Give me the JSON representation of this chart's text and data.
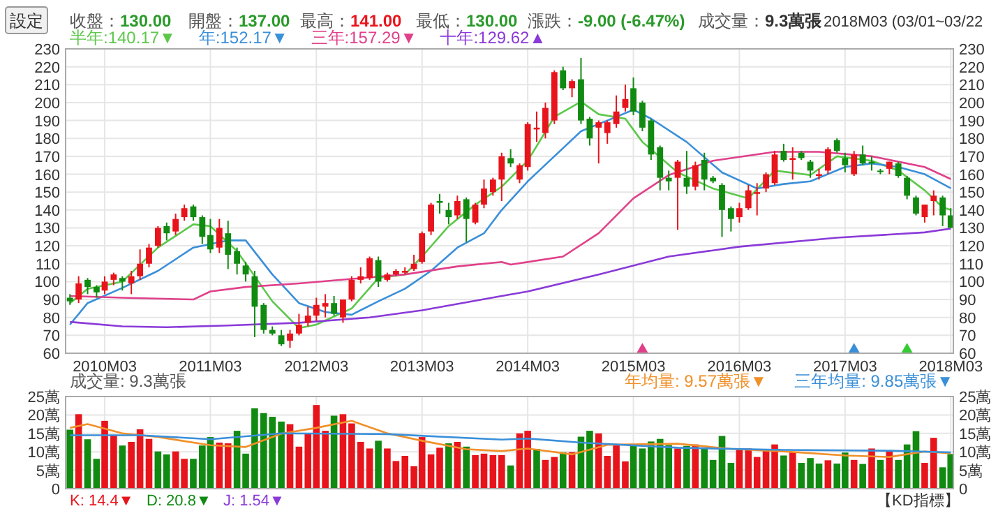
{
  "chart_data": [
    {
      "type": "candlestick",
      "annotations": [
        "設定",
        "收盤：130.00",
        "開盤：137.00",
        "最高：141.00",
        "最低：130.00",
        "漲跌：-9.00 (-6.47%)",
        "成交量：9.3萬張",
        "2018M03 (03/01~03/22"
      ],
      "xlim": [
        "2009-10-17",
        "2018-03-10"
      ],
      "xticks": [
        {
          "value": "2010-03",
          "label": "2010M03"
        },
        {
          "value": "2011-03",
          "label": "2011M03"
        },
        {
          "value": "2012-03",
          "label": "2012M03"
        },
        {
          "value": "2013-03",
          "label": "2013M03"
        },
        {
          "value": "2014-03",
          "label": "2014M03"
        },
        {
          "value": "2015-03",
          "label": "2015M03"
        },
        {
          "value": "2016-03",
          "label": "2016M03"
        },
        {
          "value": "2017-03",
          "label": "2017M03"
        },
        {
          "value": "2018-03",
          "label": "2018M03"
        }
      ],
      "ylim": [
        60,
        230
      ],
      "yticks": [
        60,
        70,
        80,
        90,
        100,
        110,
        120,
        130,
        140,
        150,
        160,
        170,
        180,
        190,
        200,
        210,
        220,
        230
      ],
      "y2lim": [
        60,
        230
      ],
      "y2ticks": [
        60,
        70,
        80,
        90,
        100,
        110,
        120,
        130,
        140,
        150,
        160,
        170,
        180,
        190,
        200,
        210,
        220,
        230
      ],
      "grid": true,
      "legend": "top left",
      "series": [
        {
          "x": [
            "2009-11",
            "2009-12",
            "2010-01",
            "2010-02",
            "2010-03",
            "2010-04",
            "2010-05",
            "2010-06",
            "2010-07",
            "2010-08",
            "2010-09",
            "2010-10",
            "2010-11",
            "2010-12",
            "2011-01",
            "2011-02",
            "2011-03",
            "2011-04",
            "2011-05",
            "2011-06",
            "2011-07",
            "2011-08",
            "2011-09",
            "2011-10",
            "2011-11",
            "2011-12",
            "2012-01",
            "2012-02",
            "2012-03",
            "2012-04",
            "2012-05",
            "2012-06",
            "2012-07",
            "2012-08",
            "2012-09",
            "2012-10",
            "2012-11",
            "2012-12",
            "2013-01",
            "2013-02",
            "2013-03",
            "2013-04",
            "2013-05",
            "2013-06",
            "2013-07",
            "2013-08",
            "2013-09",
            "2013-10",
            "2013-11",
            "2013-12",
            "2014-01",
            "2014-02",
            "2014-03",
            "2014-04",
            "2014-05",
            "2014-06",
            "2014-07",
            "2014-08",
            "2014-09",
            "2014-10",
            "2014-11",
            "2014-12",
            "2015-01",
            "2015-02",
            "2015-03",
            "2015-04",
            "2015-05",
            "2015-06",
            "2015-07",
            "2015-08",
            "2015-09",
            "2015-10",
            "2015-11",
            "2015-12",
            "2016-01",
            "2016-02",
            "2016-03",
            "2016-04",
            "2016-05",
            "2016-06",
            "2016-07",
            "2016-08",
            "2016-09",
            "2016-10",
            "2016-11",
            "2016-12",
            "2017-01",
            "2017-02",
            "2017-03",
            "2017-04",
            "2017-05",
            "2017-06",
            "2017-07",
            "2017-08",
            "2017-09",
            "2017-10",
            "2017-11",
            "2017-12",
            "2018-01",
            "2018-02",
            "2018-03"
          ],
          "ohlc": [
            [
              91,
              93,
              87,
              89
            ],
            [
              90,
              103,
              88,
              99
            ],
            [
              101,
              102,
              93,
              97
            ],
            [
              97,
              98,
              91,
              94
            ],
            [
              95,
              103,
              93,
              100
            ],
            [
              101,
              105,
              98,
              104
            ],
            [
              102,
              103,
              95,
              100
            ],
            [
              99,
              106,
              93,
              103
            ],
            [
              103,
              118,
              101,
              110
            ],
            [
              110,
              121,
              108,
              119
            ],
            [
              120,
              131,
              119,
              130
            ],
            [
              131,
              133,
              123,
              127
            ],
            [
              128,
              138,
              126,
              135
            ],
            [
              136,
              143,
              134,
              141
            ],
            [
              142,
              143,
              134,
              136
            ],
            [
              136,
              137,
              121,
              125
            ],
            [
              126,
              135,
              116,
              118
            ],
            [
              119,
              135,
              116,
              130
            ],
            [
              127,
              134,
              107,
              115
            ],
            [
              117,
              119,
              104,
              110
            ],
            [
              109,
              111,
              100,
              104
            ],
            [
              103,
              106,
              69,
              86
            ],
            [
              87,
              88,
              71,
              73
            ],
            [
              73,
              75,
              70,
              71
            ],
            [
              70,
              73,
              64,
              65
            ],
            [
              67,
              73,
              63,
              71
            ],
            [
              71,
              82,
              70,
              76
            ],
            [
              77,
              86,
              75,
              81
            ],
            [
              81,
              91,
              78,
              87
            ],
            [
              86,
              93,
              80,
              88
            ],
            [
              88,
              92,
              81,
              82
            ],
            [
              80,
              90,
              77,
              90
            ],
            [
              90,
              103,
              89,
              101
            ],
            [
              101,
              108,
              99,
              103
            ],
            [
              102,
              114,
              101,
              113
            ],
            [
              112,
              114,
              97,
              100
            ],
            [
              101,
              105,
              100,
              104
            ],
            [
              104,
              107,
              103,
              106
            ],
            [
              105,
              108,
              104,
              106
            ],
            [
              107,
              115,
              106,
              110
            ],
            [
              111,
              128,
              110,
              127
            ],
            [
              128,
              144,
              126,
              143
            ],
            [
              145,
              149,
              138,
              144
            ],
            [
              140,
              144,
              132,
              136
            ],
            [
              137,
              148,
              135,
              145
            ],
            [
              146,
              147,
              122,
              135
            ],
            [
              133,
              144,
              132,
              143
            ],
            [
              143,
              157,
              141,
              152
            ],
            [
              150,
              158,
              148,
              157
            ],
            [
              157,
              172,
              145,
              170
            ],
            [
              169,
              174,
              164,
              166
            ],
            [
              157,
              166,
              155,
              165
            ],
            [
              164,
              189,
              162,
              188
            ],
            [
              185,
              195,
              178,
              186
            ],
            [
              183,
              200,
              180,
              197
            ],
            [
              190,
              218,
              188,
              217
            ],
            [
              218,
              220,
              207,
              208
            ],
            [
              208,
              213,
              203,
              212
            ],
            [
              213,
              225,
              188,
              190
            ],
            [
              191,
              192,
              176,
              180
            ],
            [
              186,
              190,
              166,
              189
            ],
            [
              183,
              190,
              177,
              189
            ],
            [
              188,
              204,
              186,
              195
            ],
            [
              197,
              210,
              195,
              202
            ],
            [
              208,
              214,
              193,
              195
            ],
            [
              200,
              201,
              184,
              186
            ],
            [
              190,
              191,
              168,
              171
            ],
            [
              175,
              176,
              151,
              158
            ],
            [
              158,
              162,
              151,
              156
            ],
            [
              158,
              168,
              129,
              167
            ],
            [
              158,
              173,
              149,
              153
            ],
            [
              153,
              167,
              151,
              165
            ],
            [
              168,
              172,
              151,
              157
            ],
            [
              158,
              159,
              155,
              156
            ],
            [
              154,
              155,
              125,
              140
            ],
            [
              141,
              142,
              128,
              135
            ],
            [
              136,
              144,
              133,
              141
            ],
            [
              141,
              154,
              140,
              151
            ],
            [
              149,
              155,
              137,
              150
            ],
            [
              152,
              161,
              150,
              160
            ],
            [
              155,
              173,
              154,
              171
            ],
            [
              173,
              177,
              167,
              168
            ],
            [
              168,
              175,
              157,
              169
            ],
            [
              172,
              173,
              168,
              169
            ],
            [
              167,
              168,
              158,
              162
            ],
            [
              159,
              163,
              157,
              160
            ],
            [
              162,
              175,
              160,
              174
            ],
            [
              179,
              180,
              172,
              173
            ],
            [
              169,
              172,
              161,
              165
            ],
            [
              160,
              173,
              159,
              171
            ],
            [
              171,
              176,
              165,
              166
            ],
            [
              167,
              170,
              162,
              166
            ],
            [
              162,
              163,
              160,
              162
            ],
            [
              163,
              167,
              160,
              167
            ],
            [
              166,
              167,
              158,
              159
            ],
            [
              158,
              159,
              146,
              148
            ],
            [
              147,
              148,
              137,
              138
            ],
            [
              136,
              143,
              133,
              143
            ],
            [
              145,
              151,
              137,
              148
            ],
            [
              147,
              148,
              131,
              137
            ],
            [
              137,
              141,
              130,
              130
            ]
          ],
          "colors": [
            "#118a11",
            "#e8141b",
            "#118a11",
            "#118a11",
            "#e8141b",
            "#e8141b",
            "#118a11",
            "#e8141b",
            "#e8141b",
            "#e8141b",
            "#e8141b",
            "#118a11",
            "#e8141b",
            "#e8141b",
            "#118a11",
            "#118a11",
            "#118a11",
            "#e8141b",
            "#118a11",
            "#118a11",
            "#118a11",
            "#118a11",
            "#118a11",
            "#118a11",
            "#118a11",
            "#e8141b",
            "#e8141b",
            "#e8141b",
            "#e8141b",
            "#e8141b",
            "#118a11",
            "#e8141b",
            "#e8141b",
            "#e8141b",
            "#e8141b",
            "#118a11",
            "#e8141b",
            "#e8141b",
            "#e8141b",
            "#e8141b",
            "#e8141b",
            "#e8141b",
            "#118a11",
            "#118a11",
            "#e8141b",
            "#118a11",
            "#e8141b",
            "#e8141b",
            "#e8141b",
            "#e8141b",
            "#118a11",
            "#e8141b",
            "#e8141b",
            "#e8141b",
            "#e8141b",
            "#e8141b",
            "#118a11",
            "#e8141b",
            "#118a11",
            "#118a11",
            "#e8141b",
            "#e8141b",
            "#e8141b",
            "#e8141b",
            "#118a11",
            "#118a11",
            "#118a11",
            "#118a11",
            "#118a11",
            "#e8141b",
            "#118a11",
            "#e8141b",
            "#118a11",
            "#118a11",
            "#118a11",
            "#118a11",
            "#e8141b",
            "#e8141b",
            "#e8141b",
            "#e8141b",
            "#e8141b",
            "#118a11",
            "#e8141b",
            "#118a11",
            "#118a11",
            "#e8141b",
            "#e8141b",
            "#118a11",
            "#118a11",
            "#e8141b",
            "#118a11",
            "#118a11",
            "#118a11",
            "#e8141b",
            "#118a11",
            "#118a11",
            "#118a11",
            "#e8141b",
            "#e8141b",
            "#118a11",
            "#118a11"
          ]
        },
        {
          "type": "line",
          "name": "半年:140.17▼",
          "color": "#5cc84a",
          "x": [
            "2009-11",
            "2010-01",
            "2010-05",
            "2010-09",
            "2011-01",
            "2011-03",
            "2011-06",
            "2011-10",
            "2012-01",
            "2012-03",
            "2012-07",
            "2012-10",
            "2013-01",
            "2013-03",
            "2013-06",
            "2013-09",
            "2013-12",
            "2014-03",
            "2014-06",
            "2014-09",
            "2014-11",
            "2015-02",
            "2015-04",
            "2015-08",
            "2015-12",
            "2016-04",
            "2016-07",
            "2016-11",
            "2017-02",
            "2017-06",
            "2017-09",
            "2017-12",
            "2018-02",
            "2018-03"
          ],
          "values": [
            88,
            96,
            100,
            119,
            132,
            131,
            117,
            89,
            74,
            76,
            85,
            102,
            104,
            114,
            131,
            143,
            153,
            167.5,
            192,
            200.5,
            193.5,
            191,
            178,
            161,
            152,
            146.5,
            162,
            159.5,
            170,
            167.5,
            162,
            151,
            141.5,
            140.17
          ]
        },
        {
          "type": "line",
          "name": "年:152.17▼",
          "color": "#3a8fd9",
          "x": [
            "2009-11",
            "2010-01",
            "2010-05",
            "2010-09",
            "2011-01",
            "2011-05",
            "2011-07",
            "2011-10",
            "2012-01",
            "2012-04",
            "2012-07",
            "2012-10",
            "2013-01",
            "2013-04",
            "2013-07",
            "2013-10",
            "2013-12",
            "2014-03",
            "2014-06",
            "2014-09",
            "2014-12",
            "2015-03",
            "2015-05",
            "2015-09",
            "2016-01",
            "2016-05",
            "2016-08",
            "2016-11",
            "2017-03",
            "2017-06",
            "2017-09",
            "2017-12",
            "2018-03"
          ],
          "values": [
            76,
            88,
            96.5,
            106,
            119,
            123,
            123,
            104,
            88,
            83,
            81.5,
            89,
            96,
            106,
            119,
            127,
            140,
            156,
            170,
            184,
            190,
            196,
            191,
            178,
            161,
            152,
            154.5,
            156,
            164,
            166,
            164,
            160,
            152.17
          ]
        },
        {
          "type": "line",
          "name": "三年:157.29▼",
          "color": "#e0408a",
          "x": [
            "2009-11",
            "2010-05",
            "2011-01",
            "2011-03",
            "2011-07",
            "2012-01",
            "2012-07",
            "2013-01",
            "2013-07",
            "2013-12",
            "2014-01",
            "2014-07",
            "2014-11",
            "2015-03",
            "2015-07",
            "2015-12",
            "2016-07",
            "2016-12",
            "2017-06",
            "2017-12",
            "2018-03"
          ],
          "values": [
            92,
            91,
            90,
            94.5,
            97,
            99,
            101.5,
            104,
            108.5,
            111,
            109.5,
            114,
            127,
            146.5,
            159.5,
            167.5,
            172.5,
            172.5,
            170,
            164,
            157.29
          ]
        },
        {
          "type": "line",
          "name": "十年:129.62▲",
          "color": "#8a3ad8",
          "x": [
            "2009-11",
            "2010-05",
            "2010-10",
            "2011-05",
            "2012-01",
            "2012-09",
            "2013-03",
            "2013-12",
            "2014-03",
            "2014-11",
            "2015-07",
            "2016-03",
            "2017-02",
            "2017-12",
            "2018-03"
          ],
          "values": [
            77.5,
            75,
            74.5,
            75.5,
            77,
            80,
            84,
            92,
            94.5,
            104,
            114,
            119.5,
            124.5,
            127.5,
            129.62
          ]
        },
        {
          "type": "scatter",
          "marker": "triangle",
          "x": [
            "2015-04",
            "2017-04",
            "2017-10"
          ],
          "values": [
            63,
            63,
            63
          ],
          "colors": [
            "#e0408a",
            "#3a8fd9",
            "#33cc33"
          ]
        }
      ]
    },
    {
      "type": "bar",
      "title": "成交量: 9.3萬張",
      "annotations": [
        "K: 14.4▼",
        "D: 20.8▼",
        "J: 1.54▼",
        "【KD指標】"
      ],
      "xlim": [
        "2009-10-17",
        "2018-03-10"
      ],
      "xticks": [
        {
          "value": "2010-03",
          "label": null
        },
        {
          "value": "2011-03",
          "label": null
        },
        {
          "value": "2012-03",
          "label": null
        },
        {
          "value": "2013-03",
          "label": null
        },
        {
          "value": "2014-03",
          "label": null
        },
        {
          "value": "2015-03",
          "label": null
        },
        {
          "value": "2016-03",
          "label": null
        },
        {
          "value": "2017-03",
          "label": null
        },
        {
          "value": "2018-03",
          "label": null
        }
      ],
      "ylim": [
        0,
        25
      ],
      "yticks": [
        0,
        {
          "value": 5,
          "label": "5萬"
        },
        {
          "value": 10,
          "label": "10萬"
        },
        {
          "value": 15,
          "label": "15萬"
        },
        {
          "value": 20,
          "label": "20萬"
        },
        {
          "value": 25,
          "label": "25萬"
        }
      ],
      "y2lim": [
        0,
        25
      ],
      "y2ticks": [
        0,
        {
          "value": 5,
          "label": "5萬"
        },
        {
          "value": 10,
          "label": "10萬"
        },
        {
          "value": 15,
          "label": "15萬"
        },
        {
          "value": 20,
          "label": "20萬"
        },
        {
          "value": 25,
          "label": "25萬"
        }
      ],
      "grid": true,
      "legend": "top right",
      "tick_labels": "y",
      "series": [
        {
          "x": [
            "2009-11",
            "2009-12",
            "2010-01",
            "2010-02",
            "2010-03",
            "2010-04",
            "2010-05",
            "2010-06",
            "2010-07",
            "2010-08",
            "2010-09",
            "2010-10",
            "2010-11",
            "2010-12",
            "2011-01",
            "2011-02",
            "2011-03",
            "2011-04",
            "2011-05",
            "2011-06",
            "2011-07",
            "2011-08",
            "2011-09",
            "2011-10",
            "2011-11",
            "2011-12",
            "2012-01",
            "2012-02",
            "2012-03",
            "2012-04",
            "2012-05",
            "2012-06",
            "2012-07",
            "2012-08",
            "2012-09",
            "2012-10",
            "2012-11",
            "2012-12",
            "2013-01",
            "2013-02",
            "2013-03",
            "2013-04",
            "2013-05",
            "2013-06",
            "2013-07",
            "2013-08",
            "2013-09",
            "2013-10",
            "2013-11",
            "2013-12",
            "2014-01",
            "2014-02",
            "2014-03",
            "2014-04",
            "2014-05",
            "2014-06",
            "2014-07",
            "2014-08",
            "2014-09",
            "2014-10",
            "2014-11",
            "2014-12",
            "2015-01",
            "2015-02",
            "2015-03",
            "2015-04",
            "2015-05",
            "2015-06",
            "2015-07",
            "2015-08",
            "2015-09",
            "2015-10",
            "2015-11",
            "2015-12",
            "2016-01",
            "2016-02",
            "2016-03",
            "2016-04",
            "2016-05",
            "2016-06",
            "2016-07",
            "2016-08",
            "2016-09",
            "2016-10",
            "2016-11",
            "2016-12",
            "2017-01",
            "2017-02",
            "2017-03",
            "2017-04",
            "2017-05",
            "2017-06",
            "2017-07",
            "2017-08",
            "2017-09",
            "2017-10",
            "2017-11",
            "2017-12",
            "2018-01",
            "2018-02",
            "2018-03"
          ],
          "values": [
            16,
            20.2,
            13.4,
            8.1,
            18.4,
            14.5,
            11.7,
            12.7,
            16.1,
            13.5,
            10.1,
            9.3,
            10.1,
            8.1,
            8.1,
            11.7,
            14,
            12.5,
            12.3,
            15.7,
            9.5,
            21.8,
            20.5,
            19.5,
            18.2,
            17.5,
            11.4,
            15,
            22.7,
            15.7,
            19.8,
            20.2,
            17.7,
            12.7,
            10.9,
            13,
            10.9,
            7.5,
            8.9,
            6.1,
            14,
            9.3,
            11.1,
            12.3,
            12.7,
            11.4,
            9.1,
            9.5,
            9.1,
            9.1,
            6.3,
            15,
            15.7,
            10.8,
            7.8,
            8.6,
            9.9,
            9.9,
            14.1,
            15.7,
            15,
            8.9,
            11.8,
            7.4,
            12,
            10.9,
            12.8,
            13.5,
            11.8,
            10.9,
            11.6,
            12,
            10.9,
            7.8,
            14.3,
            7,
            10.9,
            10.9,
            8.6,
            10.2,
            12,
            9,
            9.9,
            7,
            8.3,
            6.8,
            7.7,
            6.8,
            9.8,
            7.8,
            6.7,
            10.9,
            7.8,
            10.1,
            7.8,
            12,
            15.6,
            7,
            13.8,
            5.8,
            9.4
          ],
          "colors": [
            "#118a11",
            "#e8141b",
            "#118a11",
            "#118a11",
            "#e8141b",
            "#e8141b",
            "#118a11",
            "#e8141b",
            "#e8141b",
            "#e8141b",
            "#118a11",
            "#118a11",
            "#e8141b",
            "#e8141b",
            "#118a11",
            "#118a11",
            "#118a11",
            "#e8141b",
            "#e8141b",
            "#118a11",
            "#118a11",
            "#118a11",
            "#118a11",
            "#118a11",
            "#118a11",
            "#e8141b",
            "#e8141b",
            "#e8141b",
            "#e8141b",
            "#e8141b",
            "#118a11",
            "#e8141b",
            "#e8141b",
            "#e8141b",
            "#e8141b",
            "#118a11",
            "#e8141b",
            "#e8141b",
            "#e8141b",
            "#e8141b",
            "#e8141b",
            "#e8141b",
            "#e8141b",
            "#118a11",
            "#e8141b",
            "#118a11",
            "#e8141b",
            "#e8141b",
            "#e8141b",
            "#e8141b",
            "#118a11",
            "#e8141b",
            "#e8141b",
            "#118a11",
            "#e8141b",
            "#e8141b",
            "#118a11",
            "#e8141b",
            "#118a11",
            "#118a11",
            "#e8141b",
            "#e8141b",
            "#e8141b",
            "#e8141b",
            "#118a11",
            "#118a11",
            "#118a11",
            "#118a11",
            "#118a11",
            "#e8141b",
            "#118a11",
            "#e8141b",
            "#118a11",
            "#118a11",
            "#118a11",
            "#118a11",
            "#e8141b",
            "#e8141b",
            "#e8141b",
            "#e8141b",
            "#e8141b",
            "#118a11",
            "#e8141b",
            "#118a11",
            "#118a11",
            "#118a11",
            "#e8141b",
            "#118a11",
            "#118a11",
            "#e8141b",
            "#118a11",
            "#e8141b",
            "#118a11",
            "#e8141b",
            "#118a11",
            "#118a11",
            "#118a11",
            "#e8141b",
            "#e8141b",
            "#118a11",
            "#118a11"
          ]
        },
        {
          "type": "line",
          "name": "年均量: 9.57萬張▼",
          "color": "#f0902a",
          "x": [
            "2009-11",
            "2010-01",
            "2010-05",
            "2010-09",
            "2011-03",
            "2011-07",
            "2011-11",
            "2012-03",
            "2012-07",
            "2012-11",
            "2013-03",
            "2013-08",
            "2013-12",
            "2014-03",
            "2014-08",
            "2014-12",
            "2015-08",
            "2016-02",
            "2016-08",
            "2017-03",
            "2017-08",
            "2017-12",
            "2018-03"
          ],
          "values": [
            16.5,
            17.5,
            15,
            14,
            11.8,
            11.3,
            14.9,
            16.5,
            18.4,
            15,
            13,
            10.7,
            10.2,
            10.9,
            9.3,
            11.9,
            12.2,
            10.8,
            10.1,
            9,
            8.6,
            10.1,
            9.57
          ]
        },
        {
          "type": "line",
          "name": "三年均量: 9.85萬張▼",
          "color": "#3a8fd9",
          "x": [
            "2009-11",
            "2010-07",
            "2011-03",
            "2011-11",
            "2012-11",
            "2013-12",
            "2014-03",
            "2014-09",
            "2015-08",
            "2016-08",
            "2017-08",
            "2018-03"
          ],
          "values": [
            14.5,
            14.5,
            13.4,
            15,
            14.8,
            13.3,
            13.6,
            12.5,
            11.1,
            10.5,
            10.3,
            9.85
          ]
        }
      ]
    }
  ]
}
